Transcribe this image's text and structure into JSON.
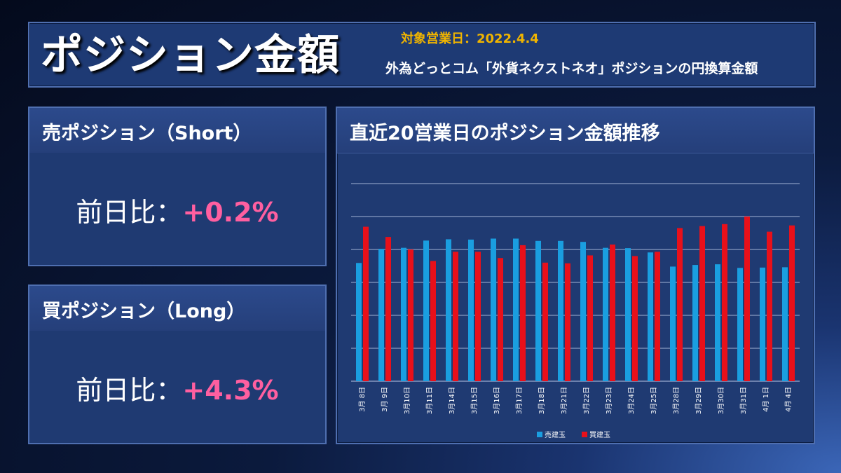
{
  "header": {
    "title": "ポジション金額",
    "date_label": "対象営業日：2022.4.4",
    "subtitle": "外為どっとコム「外貨ネクストネオ」ポジションの円換算金額"
  },
  "short_card": {
    "title": "売ポジション（Short）",
    "label": "前日比：",
    "value": "+0.2%"
  },
  "long_card": {
    "title": "買ポジション（Long）",
    "label": "前日比：",
    "value": "+4.3%"
  },
  "chart_card": {
    "title": "直近20営業日のポジション金額推移"
  },
  "colors": {
    "short": "#1a9ee0",
    "long": "#e8101a",
    "accent_value": "#ff5fa0",
    "date_label": "#f0b400"
  },
  "chart_data": {
    "type": "bar",
    "categories": [
      "3月 8日",
      "3月 9日",
      "3月10日",
      "3月11日",
      "3月14日",
      "3月15日",
      "3月16日",
      "3月17日",
      "3月18日",
      "3月21日",
      "3月22日",
      "3月23日",
      "3月24日",
      "3月25日",
      "3月28日",
      "3月29日",
      "3月30日",
      "3月31日",
      "4月 1日",
      "4月 4日"
    ],
    "series": [
      {
        "name": "売建玉",
        "color": "#1a9ee0",
        "values": [
          3.59,
          4.02,
          4.05,
          4.27,
          4.31,
          4.3,
          4.33,
          4.33,
          4.26,
          4.26,
          4.23,
          4.05,
          4.04,
          3.91,
          3.48,
          3.53,
          3.55,
          3.44,
          3.45,
          3.46
        ]
      },
      {
        "name": "買建玉",
        "color": "#e8101a",
        "values": [
          4.69,
          4.38,
          4.0,
          3.65,
          3.93,
          3.93,
          3.74,
          4.13,
          3.6,
          3.58,
          3.82,
          4.15,
          3.8,
          3.93,
          4.65,
          4.71,
          4.77,
          5.0,
          4.54,
          4.73
        ]
      }
    ],
    "ylim": [
      0,
      6
    ],
    "gridlines": 6,
    "legend": "bottom-center",
    "xlabel": "",
    "ylabel": ""
  }
}
